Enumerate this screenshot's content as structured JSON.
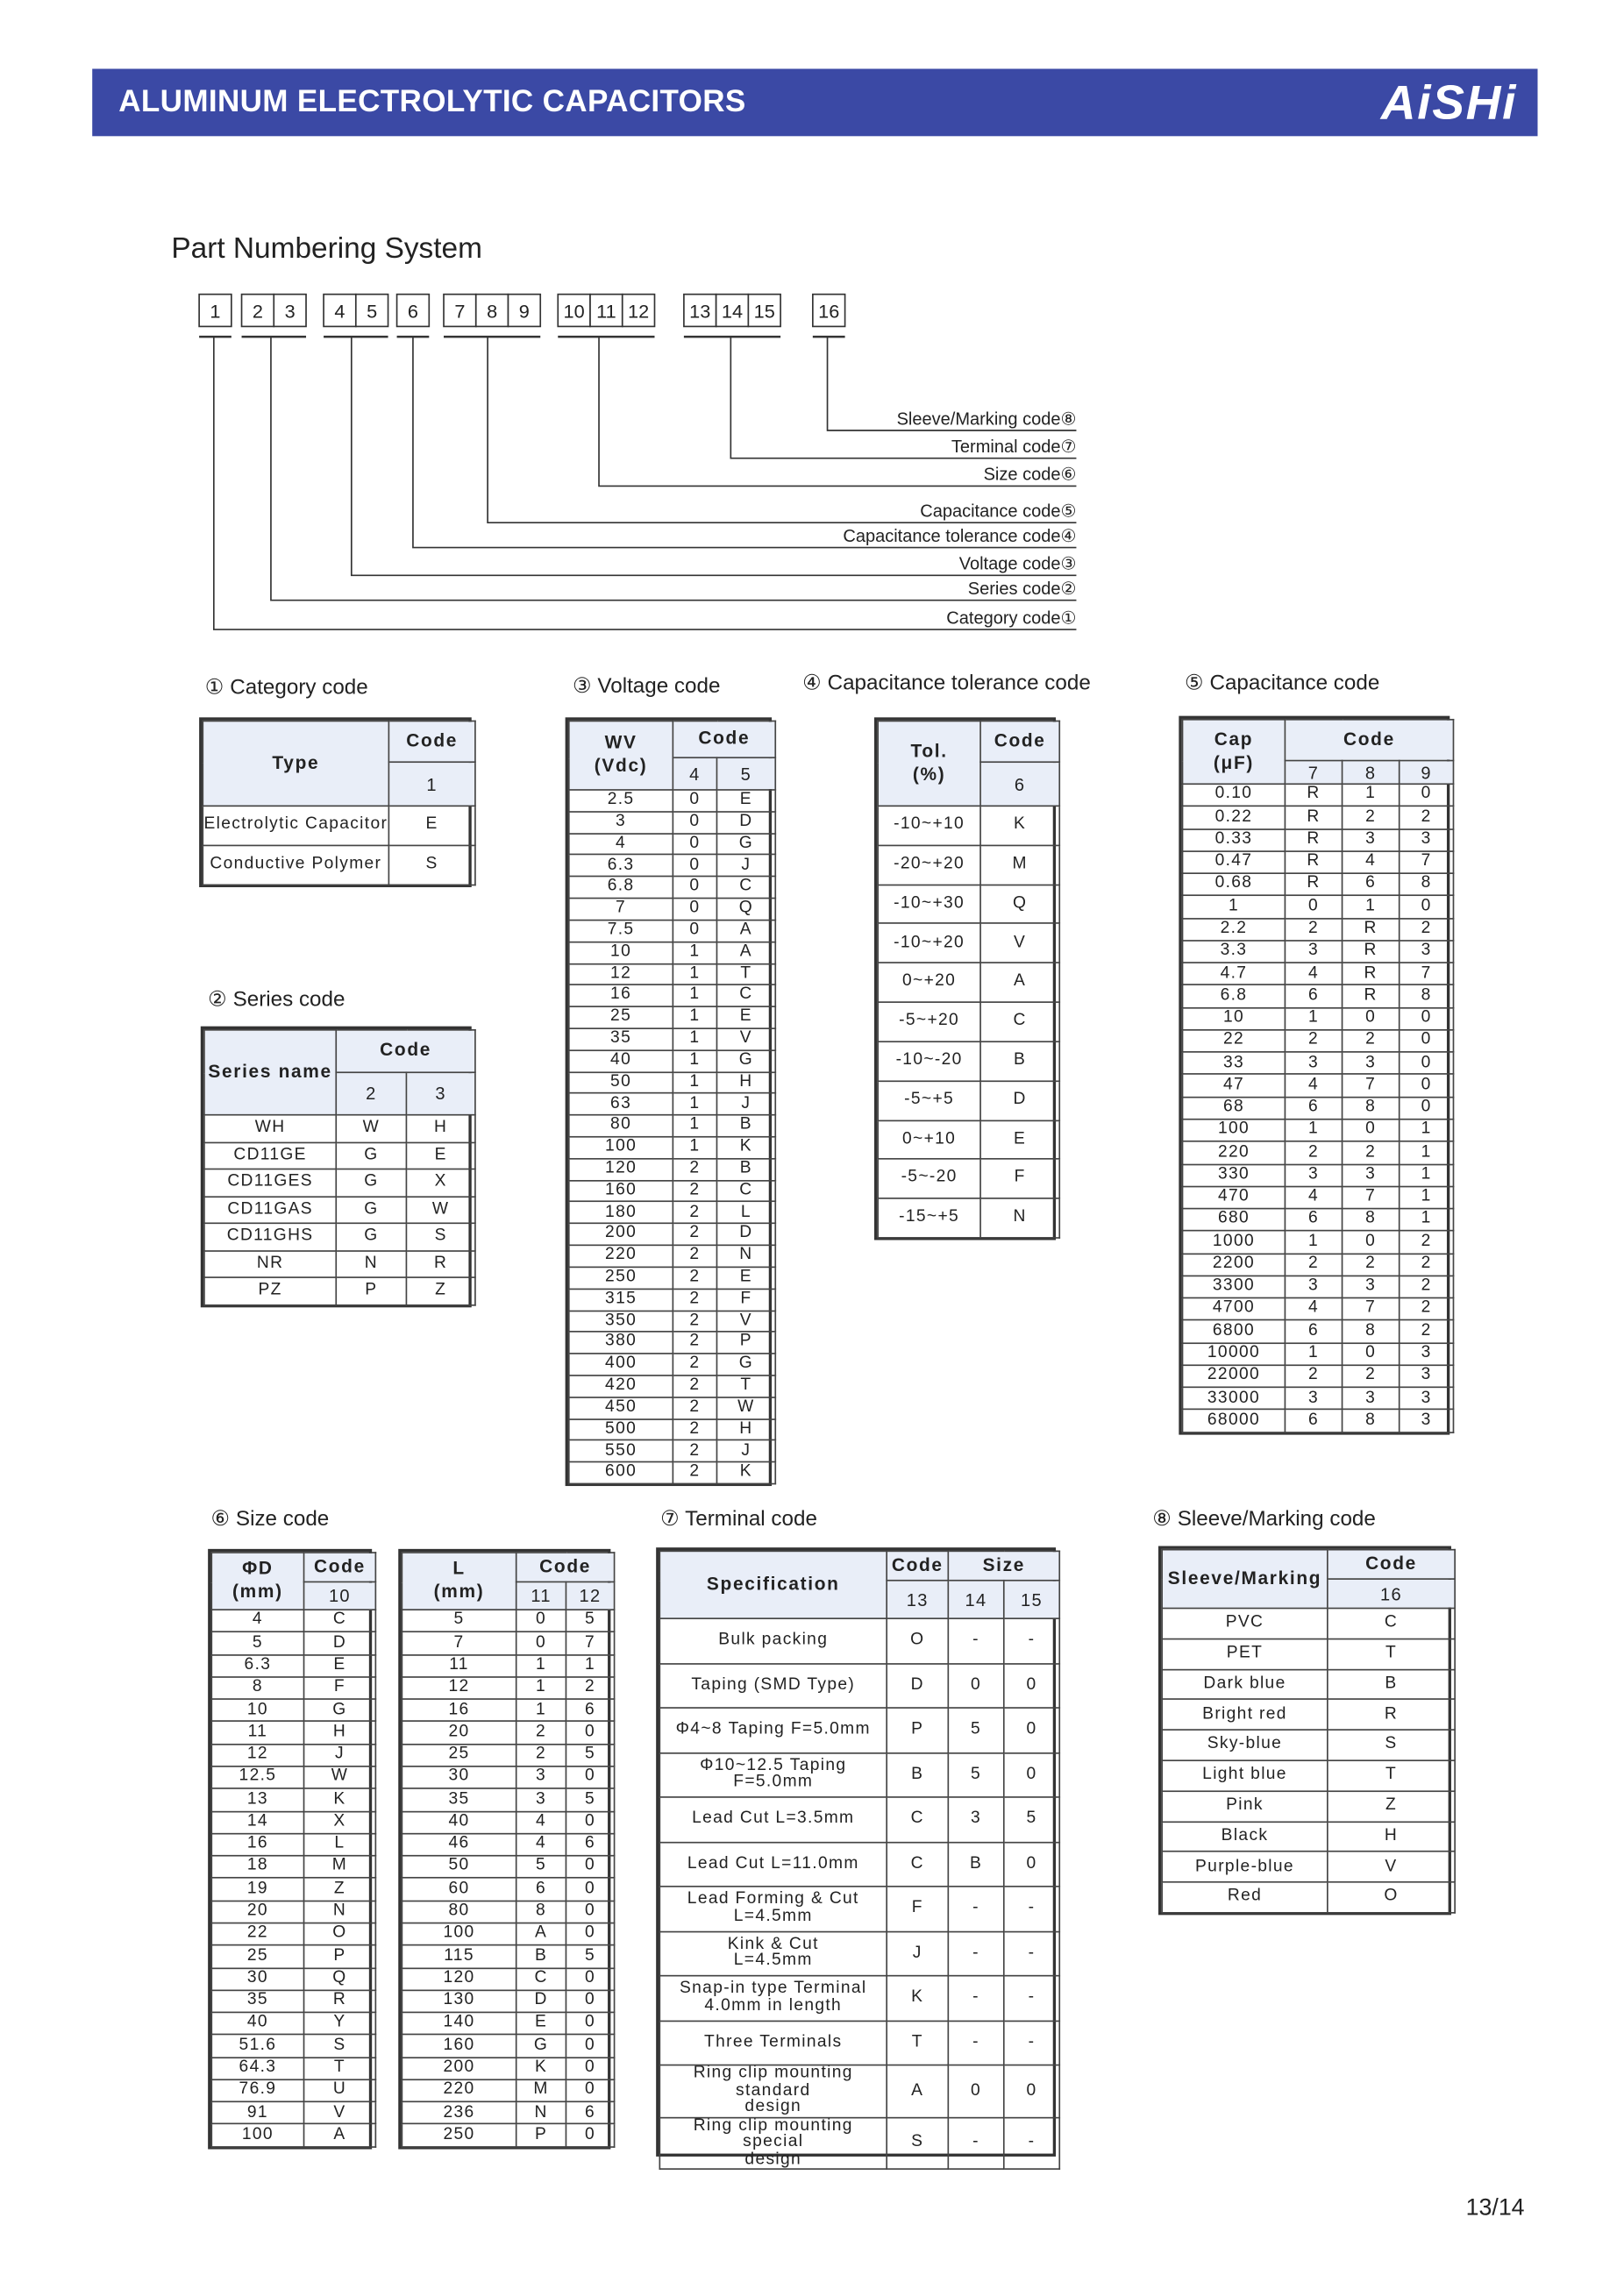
{
  "header": {
    "title": "ALUMINUM ELECTROLYTIC CAPACITORS",
    "logo": "AiSHi",
    "bar_color": "#3b49a5"
  },
  "numbering": {
    "title": "Part Numbering System",
    "groups": [
      [
        "1"
      ],
      [
        "2",
        "3"
      ],
      [
        "4",
        "5"
      ],
      [
        "6"
      ],
      [
        "7",
        "8",
        "9"
      ],
      [
        "10",
        "11",
        "12"
      ],
      [
        "13",
        "14",
        "15"
      ],
      [
        "16"
      ]
    ],
    "labels": [
      "Category code①",
      "Series code②",
      "Voltage code③",
      "Capacitance tolerance code④",
      "Capacitance code⑤",
      "Size code⑥",
      "Terminal code⑦",
      "Sleeve/Marking code⑧"
    ]
  },
  "tables": {
    "category": {
      "heading": "① Category code",
      "top": [
        "Type",
        "Code"
      ],
      "sub": [
        "1"
      ],
      "rows": [
        [
          "Electrolytic Capacitor",
          "E"
        ],
        [
          "Conductive Polymer",
          "S"
        ]
      ]
    },
    "series": {
      "heading": "② Series code",
      "top": [
        "Series name",
        "Code"
      ],
      "sub": [
        "2",
        "3"
      ],
      "rows": [
        [
          "WH",
          "W",
          "H"
        ],
        [
          "CD11GE",
          "G",
          "E"
        ],
        [
          "CD11GES",
          "G",
          "X"
        ],
        [
          "CD11GAS",
          "G",
          "W"
        ],
        [
          "CD11GHS",
          "G",
          "S"
        ],
        [
          "NR",
          "N",
          "R"
        ],
        [
          "PZ",
          "P",
          "Z"
        ]
      ]
    },
    "voltage": {
      "heading": "③ Voltage code",
      "top": [
        "WV\n(Vdc)",
        "Code"
      ],
      "sub": [
        "4",
        "5"
      ],
      "rows": [
        [
          "2.5",
          "0",
          "E"
        ],
        [
          "3",
          "0",
          "D"
        ],
        [
          "4",
          "0",
          "G"
        ],
        [
          "6.3",
          "0",
          "J"
        ],
        [
          "6.8",
          "0",
          "C"
        ],
        [
          "7",
          "0",
          "Q"
        ],
        [
          "7.5",
          "0",
          "A"
        ],
        [
          "10",
          "1",
          "A"
        ],
        [
          "12",
          "1",
          "T"
        ],
        [
          "16",
          "1",
          "C"
        ],
        [
          "25",
          "1",
          "E"
        ],
        [
          "35",
          "1",
          "V"
        ],
        [
          "40",
          "1",
          "G"
        ],
        [
          "50",
          "1",
          "H"
        ],
        [
          "63",
          "1",
          "J"
        ],
        [
          "80",
          "1",
          "B"
        ],
        [
          "100",
          "1",
          "K"
        ],
        [
          "120",
          "2",
          "B"
        ],
        [
          "160",
          "2",
          "C"
        ],
        [
          "180",
          "2",
          "L"
        ],
        [
          "200",
          "2",
          "D"
        ],
        [
          "220",
          "2",
          "N"
        ],
        [
          "250",
          "2",
          "E"
        ],
        [
          "315",
          "2",
          "F"
        ],
        [
          "350",
          "2",
          "V"
        ],
        [
          "380",
          "2",
          "P"
        ],
        [
          "400",
          "2",
          "G"
        ],
        [
          "420",
          "2",
          "T"
        ],
        [
          "450",
          "2",
          "W"
        ],
        [
          "500",
          "2",
          "H"
        ],
        [
          "550",
          "2",
          "J"
        ],
        [
          "600",
          "2",
          "K"
        ]
      ]
    },
    "tolerance": {
      "heading": "④ Capacitance tolerance code",
      "top": [
        "Tol.\n(%)",
        "Code"
      ],
      "sub": [
        "6"
      ],
      "rows": [
        [
          "-10~+10",
          "K"
        ],
        [
          "-20~+20",
          "M"
        ],
        [
          "-10~+30",
          "Q"
        ],
        [
          "-10~+20",
          "V"
        ],
        [
          "0~+20",
          "A"
        ],
        [
          "-5~+20",
          "C"
        ],
        [
          "-10~-20",
          "B"
        ],
        [
          "-5~+5",
          "D"
        ],
        [
          "0~+10",
          "E"
        ],
        [
          "-5~-20",
          "F"
        ],
        [
          "-15~+5",
          "N"
        ]
      ]
    },
    "capacitance": {
      "heading": "⑤ Capacitance code",
      "top": [
        "Cap\n(μF)",
        "Code"
      ],
      "sub": [
        "7",
        "8",
        "9"
      ],
      "rows": [
        [
          "0.10",
          "R",
          "1",
          "0"
        ],
        [
          "0.22",
          "R",
          "2",
          "2"
        ],
        [
          "0.33",
          "R",
          "3",
          "3"
        ],
        [
          "0.47",
          "R",
          "4",
          "7"
        ],
        [
          "0.68",
          "R",
          "6",
          "8"
        ],
        [
          "1",
          "0",
          "1",
          "0"
        ],
        [
          "2.2",
          "2",
          "R",
          "2"
        ],
        [
          "3.3",
          "3",
          "R",
          "3"
        ],
        [
          "4.7",
          "4",
          "R",
          "7"
        ],
        [
          "6.8",
          "6",
          "R",
          "8"
        ],
        [
          "10",
          "1",
          "0",
          "0"
        ],
        [
          "22",
          "2",
          "2",
          "0"
        ],
        [
          "33",
          "3",
          "3",
          "0"
        ],
        [
          "47",
          "4",
          "7",
          "0"
        ],
        [
          "68",
          "6",
          "8",
          "0"
        ],
        [
          "100",
          "1",
          "0",
          "1"
        ],
        [
          "220",
          "2",
          "2",
          "1"
        ],
        [
          "330",
          "3",
          "3",
          "1"
        ],
        [
          "470",
          "4",
          "7",
          "1"
        ],
        [
          "680",
          "6",
          "8",
          "1"
        ],
        [
          "1000",
          "1",
          "0",
          "2"
        ],
        [
          "2200",
          "2",
          "2",
          "2"
        ],
        [
          "3300",
          "3",
          "3",
          "2"
        ],
        [
          "4700",
          "4",
          "7",
          "2"
        ],
        [
          "6800",
          "6",
          "8",
          "2"
        ],
        [
          "10000",
          "1",
          "0",
          "3"
        ],
        [
          "22000",
          "2",
          "2",
          "3"
        ],
        [
          "33000",
          "3",
          "3",
          "3"
        ],
        [
          "68000",
          "6",
          "8",
          "3"
        ]
      ]
    },
    "size_d": {
      "heading": "⑥ Size code",
      "top": [
        "ΦD\n(mm)",
        "Code"
      ],
      "sub": [
        "10"
      ],
      "rows": [
        [
          "4",
          "C"
        ],
        [
          "5",
          "D"
        ],
        [
          "6.3",
          "E"
        ],
        [
          "8",
          "F"
        ],
        [
          "10",
          "G"
        ],
        [
          "11",
          "H"
        ],
        [
          "12",
          "J"
        ],
        [
          "12.5",
          "W"
        ],
        [
          "13",
          "K"
        ],
        [
          "14",
          "X"
        ],
        [
          "16",
          "L"
        ],
        [
          "18",
          "M"
        ],
        [
          "19",
          "Z"
        ],
        [
          "20",
          "N"
        ],
        [
          "22",
          "O"
        ],
        [
          "25",
          "P"
        ],
        [
          "30",
          "Q"
        ],
        [
          "35",
          "R"
        ],
        [
          "40",
          "Y"
        ],
        [
          "51.6",
          "S"
        ],
        [
          "64.3",
          "T"
        ],
        [
          "76.9",
          "U"
        ],
        [
          "91",
          "V"
        ],
        [
          "100",
          "A"
        ]
      ]
    },
    "size_l": {
      "top": [
        "L\n(mm)",
        "Code"
      ],
      "sub": [
        "11",
        "12"
      ],
      "rows": [
        [
          "5",
          "0",
          "5"
        ],
        [
          "7",
          "0",
          "7"
        ],
        [
          "11",
          "1",
          "1"
        ],
        [
          "12",
          "1",
          "2"
        ],
        [
          "16",
          "1",
          "6"
        ],
        [
          "20",
          "2",
          "0"
        ],
        [
          "25",
          "2",
          "5"
        ],
        [
          "30",
          "3",
          "0"
        ],
        [
          "35",
          "3",
          "5"
        ],
        [
          "40",
          "4",
          "0"
        ],
        [
          "46",
          "4",
          "6"
        ],
        [
          "50",
          "5",
          "0"
        ],
        [
          "60",
          "6",
          "0"
        ],
        [
          "80",
          "8",
          "0"
        ],
        [
          "100",
          "A",
          "0"
        ],
        [
          "115",
          "B",
          "5"
        ],
        [
          "120",
          "C",
          "0"
        ],
        [
          "130",
          "D",
          "0"
        ],
        [
          "140",
          "E",
          "0"
        ],
        [
          "160",
          "G",
          "0"
        ],
        [
          "200",
          "K",
          "0"
        ],
        [
          "220",
          "M",
          "0"
        ],
        [
          "236",
          "N",
          "6"
        ],
        [
          "250",
          "P",
          "0"
        ]
      ]
    },
    "terminal": {
      "heading": "⑦ Terminal code",
      "top": [
        "Specification",
        "Code",
        "Size"
      ],
      "sub": [
        "13",
        "14",
        "15"
      ],
      "rows": [
        [
          "Bulk packing",
          "O",
          "-",
          "-"
        ],
        [
          "Taping (SMD Type)",
          "D",
          "0",
          "0"
        ],
        [
          "Φ4~8 Taping F=5.0mm",
          "P",
          "5",
          "0"
        ],
        [
          "Φ10~12.5 Taping\nF=5.0mm",
          "B",
          "5",
          "0"
        ],
        [
          "Lead Cut L=3.5mm",
          "C",
          "3",
          "5"
        ],
        [
          "Lead Cut L=11.0mm",
          "C",
          "B",
          "0"
        ],
        [
          "Lead Forming & Cut\nL=4.5mm",
          "F",
          "-",
          "-"
        ],
        [
          "Kink & Cut\nL=4.5mm",
          "J",
          "-",
          "-"
        ],
        [
          "Snap-in type Terminal\n4.0mm in length",
          "K",
          "-",
          "-"
        ],
        [
          "Three Terminals",
          "T",
          "-",
          "-"
        ],
        [
          "Ring clip mounting standard\ndesign",
          "A",
          "0",
          "0"
        ],
        [
          "Ring clip mounting special\ndesign",
          "S",
          "-",
          "-"
        ]
      ]
    },
    "sleeve": {
      "heading": "⑧ Sleeve/Marking code",
      "top": [
        "Sleeve/Marking",
        "Code"
      ],
      "sub": [
        "16"
      ],
      "rows": [
        [
          "PVC",
          "C"
        ],
        [
          "PET",
          "T"
        ],
        [
          "Dark blue",
          "B"
        ],
        [
          "Bright red",
          "R"
        ],
        [
          "Sky-blue",
          "S"
        ],
        [
          "Light blue",
          "T"
        ],
        [
          "Pink",
          "Z"
        ],
        [
          "Black",
          "H"
        ],
        [
          "Purple-blue",
          "V"
        ],
        [
          "Red",
          "O"
        ]
      ]
    }
  },
  "colors": {
    "table_header_bg": "#e9eef8"
  },
  "page_number": "13/14"
}
